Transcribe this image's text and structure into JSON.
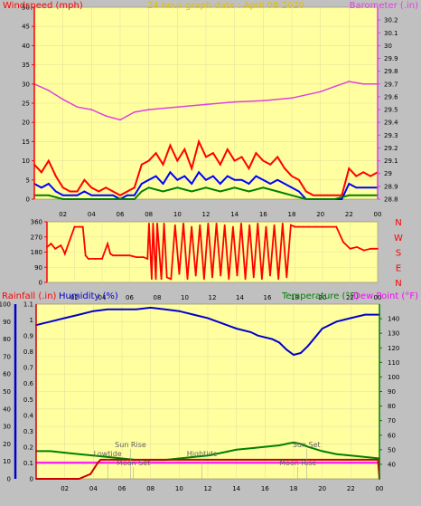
{
  "chart_data": [
    {
      "type": "line",
      "title": "24 hour graph date : April 08 2020",
      "left_axis_label": "Windspeed (mph)",
      "right_axis_label": "Barometer (.in)",
      "left_ticks": [
        "0",
        "5",
        "10",
        "15",
        "20",
        "25",
        "30",
        "35",
        "40",
        "45",
        "50"
      ],
      "ylim_left": [
        0,
        50
      ],
      "right_ticks": [
        "28.8",
        "28.9",
        "29",
        "29.1",
        "29.2",
        "29.3",
        "29.4",
        "29.5",
        "29.6",
        "29.7",
        "29.8",
        "29.9",
        "30",
        "30.1",
        "30.2"
      ],
      "ylim_right": [
        28.8,
        30.3
      ],
      "x_ticks": [
        "02",
        "04",
        "06",
        "08",
        "10",
        "12",
        "14",
        "16",
        "18",
        "20",
        "22",
        "00"
      ],
      "xlim": [
        0,
        24
      ],
      "grid": true,
      "series": [
        {
          "key": "barometer",
          "axis": "right",
          "color": "#e040e0",
          "x": [
            0,
            1,
            2,
            3,
            4,
            5,
            6,
            6.5,
            7,
            8,
            10,
            12,
            14,
            16,
            18,
            20,
            21,
            22,
            23,
            24
          ],
          "y": [
            29.7,
            29.65,
            29.58,
            29.52,
            29.5,
            29.45,
            29.42,
            29.45,
            29.48,
            29.5,
            29.52,
            29.54,
            29.56,
            29.57,
            29.59,
            29.64,
            29.68,
            29.72,
            29.7,
            29.7
          ]
        },
        {
          "key": "wind_gust",
          "axis": "left",
          "color": "#ff0000",
          "x": [
            0,
            0.5,
            1,
            1.5,
            2,
            2.5,
            3,
            3.5,
            4,
            4.5,
            5,
            5.5,
            6,
            6.5,
            7,
            7.5,
            8,
            8.5,
            9,
            9.5,
            10,
            10.5,
            11,
            11.5,
            12,
            12.5,
            13,
            13.5,
            14,
            14.5,
            15,
            15.5,
            16,
            16.5,
            17,
            17.5,
            18,
            18.5,
            19,
            19.5,
            20,
            20.5,
            21,
            21.5,
            22,
            22.5,
            23,
            23.5,
            24
          ],
          "y": [
            9,
            7,
            10,
            6,
            3,
            2,
            2,
            5,
            3,
            2,
            3,
            2,
            1,
            2,
            3,
            9,
            10,
            12,
            9,
            14,
            10,
            13,
            8,
            15,
            11,
            12,
            9,
            13,
            10,
            11,
            8,
            12,
            10,
            9,
            11,
            8,
            6,
            5,
            2,
            1,
            1,
            1,
            1,
            1,
            8,
            6,
            7,
            6,
            7
          ]
        },
        {
          "key": "wind_avg",
          "axis": "left",
          "color": "#0000ff",
          "x": [
            0,
            0.5,
            1,
            1.5,
            2,
            2.5,
            3,
            3.5,
            4,
            4.5,
            5,
            5.5,
            6,
            6.5,
            7,
            7.5,
            8,
            8.5,
            9,
            9.5,
            10,
            10.5,
            11,
            11.5,
            12,
            12.5,
            13,
            13.5,
            14,
            14.5,
            15,
            15.5,
            16,
            16.5,
            17,
            17.5,
            18,
            18.5,
            19,
            19.5,
            20,
            20.5,
            21,
            21.5,
            22,
            22.5,
            23,
            23.5,
            24
          ],
          "y": [
            4,
            3,
            4,
            2,
            1,
            1,
            1,
            2,
            1,
            1,
            1,
            1,
            0,
            1,
            1,
            4,
            5,
            6,
            4,
            7,
            5,
            6,
            4,
            7,
            5,
            6,
            4,
            6,
            5,
            5,
            4,
            6,
            5,
            4,
            5,
            4,
            3,
            2,
            0,
            0,
            0,
            0,
            0,
            0,
            4,
            3,
            3,
            3,
            3
          ]
        },
        {
          "key": "wind_min",
          "axis": "left",
          "color": "#008000",
          "x": [
            0,
            1,
            2,
            3,
            4,
            5,
            6,
            7,
            7.5,
            8,
            9,
            10,
            11,
            12,
            13,
            14,
            15,
            16,
            17,
            18,
            19,
            20,
            21,
            22,
            23,
            24
          ],
          "y": [
            1,
            1,
            0,
            0,
            0,
            0,
            0,
            0,
            2,
            3,
            2,
            3,
            2,
            3,
            2,
            3,
            2,
            3,
            2,
            1,
            0,
            0,
            0,
            1,
            1,
            1
          ]
        }
      ]
    },
    {
      "type": "line",
      "direction_ticks": [
        "0",
        "90",
        "180",
        "270",
        "360"
      ],
      "compass_labels": [
        "N",
        "W",
        "S",
        "E",
        "N"
      ],
      "ylim": [
        0,
        360
      ],
      "x_ticks": [
        "02",
        "04",
        "06",
        "08",
        "10",
        "12",
        "14",
        "16",
        "18",
        "20",
        "22",
        "00"
      ],
      "xlim": [
        0,
        24
      ],
      "series": [
        {
          "key": "wind_direction",
          "color": "#ff0000",
          "x": [
            0,
            0.3,
            0.6,
            1,
            1.2,
            1.3,
            2,
            2.4,
            2.6,
            2.8,
            3,
            3.5,
            4,
            4.4,
            4.6,
            4.8,
            5,
            5.5,
            6,
            6.5,
            7,
            7.3,
            7.4,
            7.6,
            7.7,
            7.9,
            8,
            8.3,
            8.5,
            8.7,
            9,
            9.3,
            9.6,
            9.9,
            10.2,
            10.5,
            10.8,
            11.1,
            11.4,
            11.7,
            12,
            12.3,
            12.6,
            12.9,
            13.2,
            13.5,
            13.8,
            14.1,
            14.4,
            14.7,
            15,
            15.3,
            15.6,
            15.9,
            16.2,
            16.5,
            16.8,
            17.1,
            17.4,
            17.7,
            18,
            18.3,
            18.6,
            19,
            19.5,
            20,
            21,
            21.5,
            22,
            22.5,
            23,
            23.5,
            24
          ],
          "y": [
            210,
            230,
            200,
            220,
            190,
            170,
            330,
            330,
            330,
            160,
            140,
            140,
            140,
            230,
            170,
            160,
            160,
            160,
            160,
            150,
            150,
            140,
            350,
            20,
            350,
            20,
            350,
            20,
            350,
            30,
            20,
            340,
            50,
            350,
            20,
            330,
            40,
            340,
            20,
            350,
            30,
            350,
            40,
            340,
            20,
            330,
            40,
            350,
            20,
            340,
            30,
            350,
            20,
            330,
            40,
            340,
            20,
            350,
            30,
            340,
            330,
            330,
            330,
            330,
            330,
            330,
            330,
            240,
            200,
            210,
            190,
            200,
            200
          ]
        }
      ]
    },
    {
      "type": "line",
      "left_axis_label_1": "Rainfall (.in)",
      "left_axis_label_2": "Humidity (%)",
      "right_axis_label_1": "Temperature (°F)",
      "right_axis_label_2": "Dew Point (°F)",
      "humidity_ticks": [
        "0",
        "10",
        "20",
        "30",
        "40",
        "50",
        "60",
        "70",
        "80",
        "90",
        "100"
      ],
      "rain_ticks": [
        "0",
        "0.1",
        "0.2",
        "0.3",
        "0.4",
        "0.5",
        "0.6",
        "0.7",
        "0.8",
        "0.9",
        "1",
        "1.1"
      ],
      "temp_ticks": [
        "40",
        "50",
        "60",
        "70",
        "80",
        "90",
        "100",
        "110",
        "120",
        "130",
        "140"
      ],
      "ylim_humidity": [
        0,
        100
      ],
      "ylim_rain": [
        0,
        1.1
      ],
      "ylim_temp": [
        30,
        150
      ],
      "x_ticks": [
        "02",
        "04",
        "06",
        "08",
        "10",
        "12",
        "14",
        "16",
        "18",
        "20",
        "22",
        "00"
      ],
      "xlim": [
        0,
        24
      ],
      "series": [
        {
          "key": "humidity",
          "axis": "humidity",
          "color": "#0000cc",
          "x": [
            0,
            0.5,
            1,
            2,
            3,
            4,
            5,
            6,
            7,
            8,
            9,
            10,
            11,
            12,
            13,
            14,
            15,
            15.5,
            16,
            16.5,
            17,
            17.5,
            18,
            18.5,
            19,
            19.5,
            20,
            21,
            22,
            23,
            24
          ],
          "y": [
            88,
            89,
            90,
            92,
            94,
            96,
            97,
            97,
            97,
            98,
            97,
            96,
            94,
            92,
            89,
            86,
            84,
            82,
            81,
            80,
            78,
            74,
            71,
            72,
            76,
            81,
            86,
            90,
            92,
            94,
            94
          ]
        },
        {
          "key": "temperature",
          "axis": "temp",
          "color": "#008000",
          "x": [
            0,
            1,
            2,
            3,
            4,
            5,
            6,
            7,
            8,
            9,
            10,
            11,
            12,
            13,
            14,
            15,
            16,
            17,
            17.5,
            18,
            18.5,
            19,
            20,
            21,
            22,
            23,
            24
          ],
          "y": [
            49,
            49,
            48,
            47,
            46,
            45,
            44,
            43,
            43,
            43,
            44,
            45,
            46,
            48,
            50,
            51,
            52,
            53,
            54,
            55,
            54,
            52,
            49,
            47,
            46,
            45,
            44
          ]
        },
        {
          "key": "dew_point",
          "axis": "temp",
          "color": "#ff00ff",
          "x": [
            0,
            2,
            4,
            6,
            8,
            10,
            12,
            14,
            16,
            18,
            20,
            22,
            24
          ],
          "y": [
            41,
            41,
            41,
            41,
            41,
            41,
            41,
            41,
            41,
            41,
            41,
            41,
            41
          ]
        },
        {
          "key": "rainfall",
          "axis": "rain",
          "color": "#cc0000",
          "x": [
            0,
            1,
            2,
            3,
            3.8,
            4.3,
            4.5,
            5,
            6,
            8,
            10,
            12,
            14,
            16,
            18,
            20,
            22,
            23.9,
            24
          ],
          "y": [
            0,
            0,
            0,
            0,
            0.03,
            0.1,
            0.12,
            0.12,
            0.12,
            0.12,
            0.12,
            0.12,
            0.12,
            0.12,
            0.12,
            0.12,
            0.12,
            0.12,
            0
          ]
        }
      ],
      "annotations": [
        {
          "text": "Sun Rise",
          "x": 6.6,
          "row": 1
        },
        {
          "text": "Lowtide",
          "x": 5.0,
          "row": 2
        },
        {
          "text": "Moon Set",
          "x": 6.8,
          "row": 3
        },
        {
          "text": "Hightide",
          "x": 11.6,
          "row": 2
        },
        {
          "text": "Sun Set",
          "x": 18.9,
          "row": 1
        },
        {
          "text": "Moon Rise",
          "x": 18.3,
          "row": 3
        }
      ]
    }
  ]
}
